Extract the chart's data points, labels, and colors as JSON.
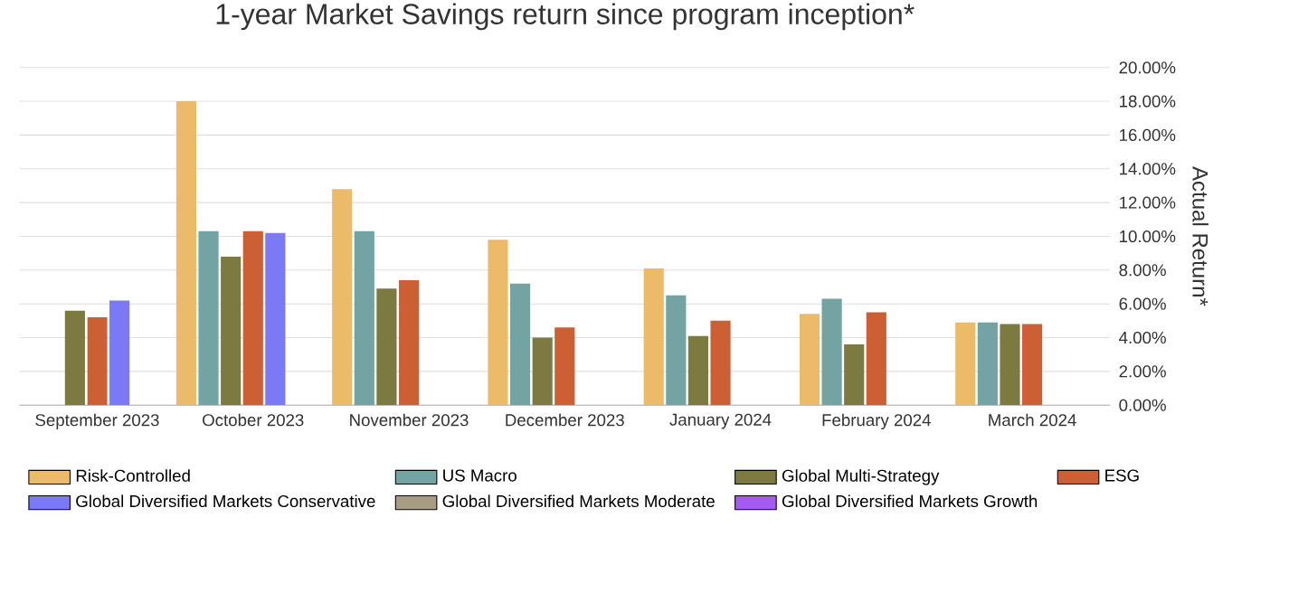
{
  "chart_data": {
    "type": "bar",
    "title": "1-year Market Savings return since program inception*",
    "ylabel": "Actual Return*",
    "categories": [
      "September 2023",
      "October 2023",
      "November 2023",
      "December 2023",
      "January 2024",
      "February 2024",
      "March 2024"
    ],
    "series": [
      {
        "name": "Risk-Controlled",
        "color": "#ebbb6a",
        "values": [
          null,
          18.0,
          12.8,
          9.8,
          8.1,
          5.4,
          4.9
        ]
      },
      {
        "name": "US Macro",
        "color": "#74a3a3",
        "values": [
          null,
          10.3,
          10.3,
          7.2,
          6.5,
          6.3,
          4.9
        ]
      },
      {
        "name": "Global Multi-Strategy",
        "color": "#7d7a41",
        "values": [
          5.6,
          8.8,
          6.9,
          4.0,
          4.1,
          3.6,
          4.8
        ]
      },
      {
        "name": "ESG",
        "color": "#cc5f34",
        "values": [
          5.2,
          10.3,
          7.4,
          4.6,
          5.0,
          5.5,
          4.8
        ]
      },
      {
        "name": "Global Diversified Markets Conservative",
        "color": "#7b79f5",
        "values": [
          6.2,
          10.2,
          null,
          null,
          null,
          null,
          null
        ]
      },
      {
        "name": "Global Diversified Markets Moderate",
        "color": "#a89c85",
        "values": [
          null,
          null,
          null,
          null,
          null,
          null,
          null
        ]
      },
      {
        "name": "Global Diversified Markets Growth",
        "color": "#a45cf0",
        "values": [
          null,
          null,
          null,
          null,
          null,
          null,
          null
        ]
      }
    ],
    "ylim": [
      0,
      20
    ],
    "yticks": [
      {
        "value": 0,
        "label": "0.00%"
      },
      {
        "value": 2,
        "label": "2.00%"
      },
      {
        "value": 4,
        "label": "4.00%"
      },
      {
        "value": 6,
        "label": "6.00%"
      },
      {
        "value": 8,
        "label": "8.00%"
      },
      {
        "value": 10,
        "label": "10.00%"
      },
      {
        "value": 12,
        "label": "12.00%"
      },
      {
        "value": 14,
        "label": "14.00%"
      },
      {
        "value": 16,
        "label": "16.00%"
      },
      {
        "value": 18,
        "label": "18.00%"
      },
      {
        "value": 20,
        "label": "20.00%"
      }
    ],
    "grid": "y",
    "legend": "bottom"
  }
}
